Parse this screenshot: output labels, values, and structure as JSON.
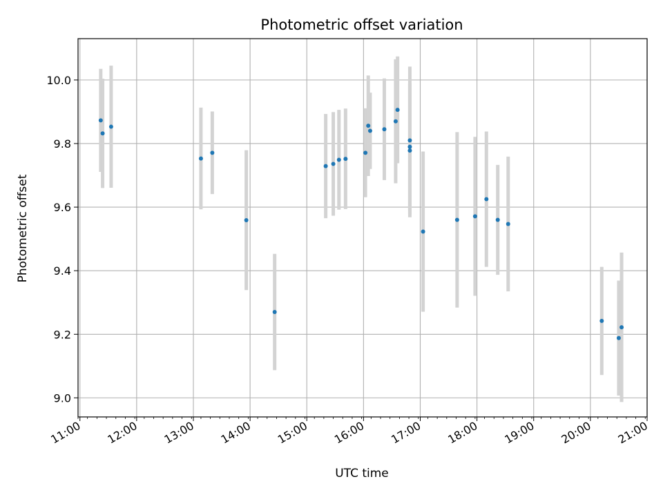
{
  "chart_data": {
    "type": "scatter",
    "title": "Photometric offset variation",
    "xlabel": "UTC time",
    "ylabel": "Photometric offset",
    "x_ticks": [
      "11:00",
      "12:00",
      "13:00",
      "14:00",
      "15:00",
      "16:00",
      "17:00",
      "18:00",
      "19:00",
      "20:00",
      "21:00"
    ],
    "y_ticks": [
      "9.0",
      "9.2",
      "9.4",
      "9.6",
      "9.8",
      "10.0"
    ],
    "xlim": [
      "10:58",
      "21:00"
    ],
    "ylim": [
      8.94,
      10.13
    ],
    "grid": true,
    "colors": {
      "point": "#1f77b4",
      "errorbar": "#d3d3d3",
      "grid": "#b0b0b0"
    },
    "series": [
      {
        "points": [
          {
            "t": "11:22",
            "y": 9.873,
            "err": 0.162
          },
          {
            "t": "11:24",
            "y": 9.832,
            "err": 0.172
          },
          {
            "t": "11:33",
            "y": 9.853,
            "err": 0.192
          },
          {
            "t": "13:08",
            "y": 9.753,
            "err": 0.16
          },
          {
            "t": "13:20",
            "y": 9.771,
            "err": 0.13
          },
          {
            "t": "13:56",
            "y": 9.559,
            "err": 0.22
          },
          {
            "t": "14:26",
            "y": 9.27,
            "err": 0.183
          },
          {
            "t": "15:20",
            "y": 9.729,
            "err": 0.164
          },
          {
            "t": "15:28",
            "y": 9.736,
            "err": 0.163
          },
          {
            "t": "15:34",
            "y": 9.749,
            "err": 0.157
          },
          {
            "t": "15:41",
            "y": 9.752,
            "err": 0.158
          },
          {
            "t": "16:02",
            "y": 9.771,
            "err": 0.14
          },
          {
            "t": "16:05",
            "y": 9.856,
            "err": 0.158
          },
          {
            "t": "16:07",
            "y": 9.84,
            "err": 0.12
          },
          {
            "t": "16:22",
            "y": 9.845,
            "err": 0.16
          },
          {
            "t": "16:34",
            "y": 9.87,
            "err": 0.195
          },
          {
            "t": "16:36",
            "y": 9.906,
            "err": 0.168
          },
          {
            "t": "16:49",
            "y": 9.81,
            "err": 0.232
          },
          {
            "t": "16:49",
            "y": 9.79,
            "err": 0.2
          },
          {
            "t": "16:49",
            "y": 9.778,
            "err": 0.21
          },
          {
            "t": "17:03",
            "y": 9.523,
            "err": 0.252
          },
          {
            "t": "17:39",
            "y": 9.56,
            "err": 0.276
          },
          {
            "t": "17:58",
            "y": 9.571,
            "err": 0.25
          },
          {
            "t": "18:10",
            "y": 9.625,
            "err": 0.213
          },
          {
            "t": "18:22",
            "y": 9.56,
            "err": 0.173
          },
          {
            "t": "18:33",
            "y": 9.547,
            "err": 0.212
          },
          {
            "t": "20:12",
            "y": 9.242,
            "err": 0.17
          },
          {
            "t": "20:30",
            "y": 9.188,
            "err": 0.181
          },
          {
            "t": "20:33",
            "y": 9.222,
            "err": 0.235
          }
        ]
      }
    ]
  }
}
